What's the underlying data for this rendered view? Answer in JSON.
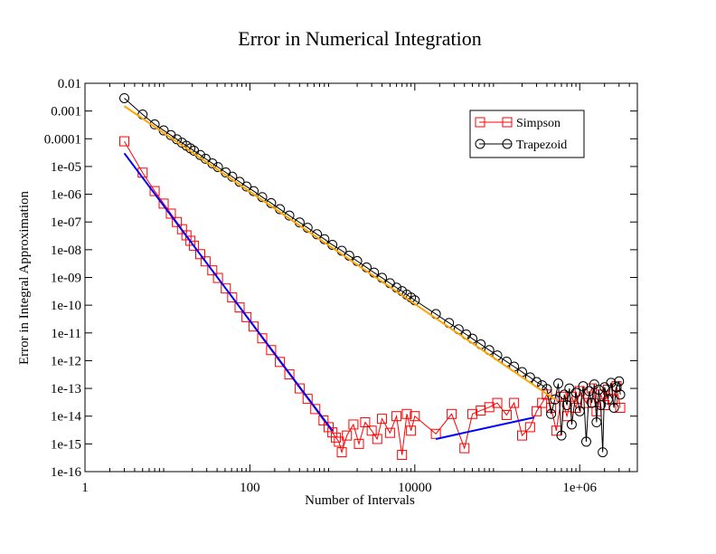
{
  "chart_data": {
    "type": "scatter",
    "title": "Error in Numerical Integration",
    "xlabel": "Number of Intervals",
    "ylabel": "Error in Integral Approximation",
    "x_scale": "log",
    "y_scale": "log",
    "xlim": [
      1,
      5000000
    ],
    "ylim": [
      1e-16,
      0.01
    ],
    "x_ticks": [
      {
        "value": 1,
        "label": "1"
      },
      {
        "value": 100,
        "label": "100"
      },
      {
        "value": 10000,
        "label": "10000"
      },
      {
        "value": 1000000,
        "label": "1e+06"
      }
    ],
    "y_ticks": [
      {
        "value": 0.01,
        "label": "0.01"
      },
      {
        "value": 0.001,
        "label": "0.001"
      },
      {
        "value": 0.0001,
        "label": "0.0001"
      },
      {
        "value": 1e-05,
        "label": "1e-05"
      },
      {
        "value": 1e-06,
        "label": "1e-06"
      },
      {
        "value": 1e-07,
        "label": "1e-07"
      },
      {
        "value": 1e-08,
        "label": "1e-08"
      },
      {
        "value": 1e-09,
        "label": "1e-09"
      },
      {
        "value": 1e-10,
        "label": "1e-10"
      },
      {
        "value": 1e-11,
        "label": "1e-11"
      },
      {
        "value": 1e-12,
        "label": "1e-12"
      },
      {
        "value": 1e-13,
        "label": "1e-13"
      },
      {
        "value": 1e-14,
        "label": "1e-14"
      },
      {
        "value": 1e-15,
        "label": "1e-15"
      },
      {
        "value": 1e-16,
        "label": "1e-16"
      }
    ],
    "grid": false,
    "legend_position": "top-right",
    "series": [
      {
        "name": "Simpson",
        "color": "#ff0000",
        "marker": "square",
        "points": [
          [
            3,
            8.1e-05
          ],
          [
            5,
            6e-06
          ],
          [
            7,
            1.3e-06
          ],
          [
            9,
            4.6e-07
          ],
          [
            11,
            2e-07
          ],
          [
            13,
            1e-07
          ],
          [
            15,
            5.5e-08
          ],
          [
            17,
            3.3e-08
          ],
          [
            19,
            2.1e-08
          ],
          [
            21,
            1.4e-08
          ],
          [
            25,
            6.9e-09
          ],
          [
            29,
            3.8e-09
          ],
          [
            35,
            1.8e-09
          ],
          [
            41,
            9.6e-10
          ],
          [
            51,
            4e-10
          ],
          [
            61,
            1.9e-10
          ],
          [
            75,
            8.3e-11
          ],
          [
            91,
            3.7e-11
          ],
          [
            111,
            1.7e-11
          ],
          [
            141,
            6.4e-12
          ],
          [
            181,
            2.4e-12
          ],
          [
            231,
            9e-13
          ],
          [
            301,
            3.2e-13
          ],
          [
            401,
            1e-13
          ],
          [
            501,
            4.2e-14
          ],
          [
            621,
            1.8e-14
          ],
          [
            781,
            7e-15
          ],
          [
            901,
            4e-15
          ],
          [
            1001,
            2.6e-15
          ],
          [
            1101,
            1.7e-15
          ],
          [
            1201,
            1.2e-15
          ],
          [
            1301,
            5e-16
          ],
          [
            1501,
            2e-15
          ],
          [
            1801,
            5e-15
          ],
          [
            2101,
            1e-15
          ],
          [
            2501,
            6e-15
          ],
          [
            3001,
            3e-15
          ],
          [
            3501,
            1.5e-15
          ],
          [
            4001,
            8e-15
          ],
          [
            5001,
            2.5e-15
          ],
          [
            6001,
            1e-14
          ],
          [
            7001,
            4e-16
          ],
          [
            8001,
            1.2e-14
          ],
          [
            9001,
            3e-15
          ],
          [
            10001,
            1e-14
          ],
          [
            18000,
            2.3e-15
          ],
          [
            28000,
            1.2e-14
          ],
          [
            40000,
            7e-16
          ],
          [
            50000,
            1.2e-14
          ],
          [
            63000,
            1.6e-14
          ],
          [
            80000,
            2.1e-14
          ],
          [
            100000,
            3e-14
          ],
          [
            130000,
            1.1e-14
          ],
          [
            160000,
            3e-14
          ],
          [
            200000,
            2e-15
          ],
          [
            250000,
            4e-15
          ],
          [
            300000,
            1.5e-14
          ],
          [
            350000,
            3e-14
          ],
          [
            400000,
            6e-14
          ],
          [
            450000,
            2e-14
          ],
          [
            520000,
            3e-15
          ],
          [
            600000,
            5e-14
          ],
          [
            700000,
            1e-14
          ],
          [
            800000,
            5e-14
          ],
          [
            900000,
            2e-14
          ],
          [
            1000000,
            8e-14
          ],
          [
            1200000,
            3e-14
          ],
          [
            1400000,
            1e-13
          ],
          [
            1600000,
            1.5e-14
          ],
          [
            1800000,
            6e-14
          ],
          [
            2000000,
            2.5e-14
          ],
          [
            2200000,
            9e-14
          ],
          [
            2500000,
            4e-14
          ],
          [
            2800000,
            1.2e-13
          ],
          [
            3100000,
            2e-14
          ]
        ]
      },
      {
        "name": "Trapezoid",
        "color": "#000000",
        "marker": "circle",
        "points": [
          [
            3,
            0.0029
          ],
          [
            5,
            0.00075
          ],
          [
            7,
            0.00033
          ],
          [
            9,
            0.0002
          ],
          [
            11,
            0.000135
          ],
          [
            13,
            9.6e-05
          ],
          [
            15,
            7.2e-05
          ],
          [
            17,
            5.6e-05
          ],
          [
            19,
            4.5e-05
          ],
          [
            21,
            3.7e-05
          ],
          [
            25,
            2.6e-05
          ],
          [
            29,
            1.9e-05
          ],
          [
            35,
            1.3e-05
          ],
          [
            41,
            9.5e-06
          ],
          [
            51,
            6.1e-06
          ],
          [
            61,
            4.3e-06
          ],
          [
            75,
            2.8e-06
          ],
          [
            91,
            1.9e-06
          ],
          [
            111,
            1.3e-06
          ],
          [
            141,
            7.9e-07
          ],
          [
            181,
            4.8e-07
          ],
          [
            231,
            2.9e-07
          ],
          [
            301,
            1.7e-07
          ],
          [
            401,
            9.6e-08
          ],
          [
            501,
            6.2e-08
          ],
          [
            651,
            3.6e-08
          ],
          [
            801,
            2.4e-08
          ],
          [
            1001,
            1.5e-08
          ],
          [
            1301,
            9.2e-09
          ],
          [
            1601,
            6.1e-09
          ],
          [
            2001,
            3.9e-09
          ],
          [
            2601,
            2.3e-09
          ],
          [
            3201,
            1.5e-09
          ],
          [
            4001,
            9.7e-10
          ],
          [
            5001,
            6.2e-10
          ],
          [
            6001,
            4.3e-10
          ],
          [
            7001,
            3.2e-10
          ],
          [
            8001,
            2.4e-10
          ],
          [
            9001,
            1.9e-10
          ],
          [
            10001,
            1.5e-10
          ],
          [
            18000,
            4.8e-11
          ],
          [
            26000,
            2.3e-11
          ],
          [
            34000,
            1.35e-11
          ],
          [
            42000,
            8.8e-12
          ],
          [
            50000,
            6.2e-12
          ],
          [
            63000,
            3.9e-12
          ],
          [
            80000,
            2.4e-12
          ],
          [
            100000,
            1.55e-12
          ],
          [
            130000,
            9.2e-13
          ],
          [
            160000,
            6.1e-13
          ],
          [
            200000,
            3.9e-13
          ],
          [
            250000,
            2.5e-13
          ],
          [
            300000,
            1.7e-13
          ],
          [
            350000,
            1.3e-13
          ],
          [
            400000,
            9.5e-14
          ],
          [
            450000,
            1.2e-14
          ],
          [
            500000,
            4e-14
          ],
          [
            550000,
            1.5e-13
          ],
          [
            600000,
            2e-15
          ],
          [
            650000,
            6e-14
          ],
          [
            700000,
            2.5e-14
          ],
          [
            750000,
            1e-13
          ],
          [
            800000,
            5e-15
          ],
          [
            900000,
            7e-14
          ],
          [
            1000000,
            1.5e-14
          ],
          [
            1100000,
            1.2e-13
          ],
          [
            1200000,
            1.2e-15
          ],
          [
            1300000,
            8e-14
          ],
          [
            1400000,
            3e-14
          ],
          [
            1500000,
            1.4e-13
          ],
          [
            1600000,
            6e-15
          ],
          [
            1700000,
            9e-14
          ],
          [
            1800000,
            2.5e-14
          ],
          [
            1900000,
            5e-16
          ],
          [
            2000000,
            1.1e-13
          ],
          [
            2200000,
            4e-14
          ],
          [
            2400000,
            1.6e-13
          ],
          [
            2600000,
            2e-14
          ],
          [
            2800000,
            1.1e-13
          ],
          [
            3000000,
            1.8e-13
          ],
          [
            3100000,
            6e-14
          ]
        ]
      }
    ],
    "fit_lines": [
      {
        "color": "#0000ff",
        "points": [
          [
            3,
            3e-05
          ],
          [
            1001,
            3e-15
          ]
        ]
      },
      {
        "color": "#0000ff",
        "points": [
          [
            18000,
            1.5e-15
          ],
          [
            280000,
            9e-15
          ]
        ]
      },
      {
        "color": "#ffa500",
        "points": [
          [
            3,
            0.0015
          ],
          [
            500000,
            4e-14
          ]
        ]
      }
    ]
  }
}
